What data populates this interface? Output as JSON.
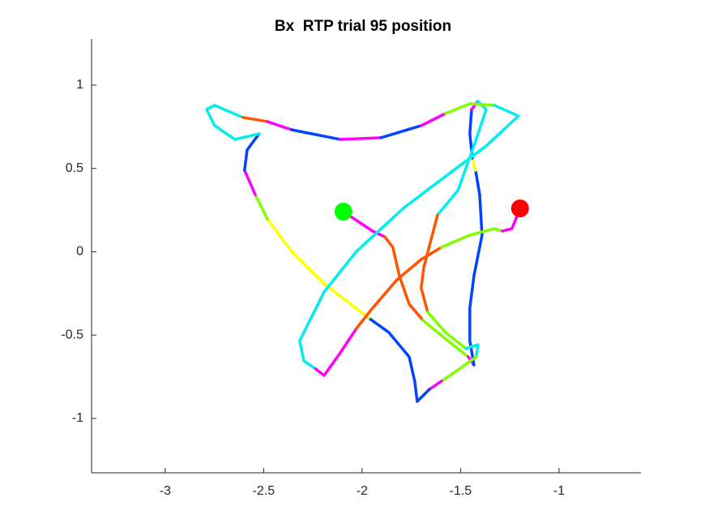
{
  "chart_data": {
    "type": "line",
    "title": "Bx  RTP trial 95 position",
    "xlim": [
      -3.374,
      -0.584
    ],
    "ylim": [
      -1.326,
      1.277
    ],
    "xticks": [
      -3,
      -2.5,
      -2,
      -1.5,
      -1
    ],
    "yticks": [
      -1,
      -0.5,
      0,
      0.5,
      1
    ],
    "start": {
      "x": -2.095,
      "y": 0.241,
      "color": "#00ff00"
    },
    "end": {
      "x": -1.198,
      "y": 0.26,
      "color": "#ff0000"
    },
    "segments": [
      {
        "color": "#ff00ff",
        "x": [
          -2.095,
          -1.947,
          -1.885
        ],
        "y": [
          0.241,
          0.124,
          0.09
        ]
      },
      {
        "color": "#ff5500",
        "x": [
          -1.885,
          -1.844,
          -1.811,
          -1.761,
          -1.691
        ],
        "y": [
          0.09,
          0.027,
          -0.144,
          -0.314,
          -0.411
        ]
      },
      {
        "color": "#80ff00",
        "x": [
          -1.691,
          -1.576,
          -1.461
        ],
        "y": [
          -0.411,
          -0.523,
          -0.63
        ]
      },
      {
        "color": "#ff00ff",
        "x": [
          -1.461,
          -1.432
        ],
        "y": [
          -0.63,
          -0.679
        ]
      },
      {
        "color": "#0044ff",
        "x": [
          -1.432,
          -1.453,
          -1.453,
          -1.432,
          -1.391,
          -1.403,
          -1.424
        ],
        "y": [
          -0.679,
          -0.533,
          -0.338,
          -0.144,
          0.1,
          0.343,
          0.489
        ]
      },
      {
        "color": "#ffff00",
        "x": [
          -1.424,
          -1.44
        ],
        "y": [
          0.489,
          0.562
        ]
      },
      {
        "color": "#0044ff",
        "x": [
          -1.44,
          -1.453,
          -1.444
        ],
        "y": [
          0.562,
          0.708,
          0.854
        ]
      },
      {
        "color": "#ff00ff",
        "x": [
          -1.444,
          -1.412
        ],
        "y": [
          0.854,
          0.903
        ]
      },
      {
        "color": "#00eeee",
        "x": [
          -1.412,
          -1.37,
          -1.432,
          -1.514,
          -1.617
        ],
        "y": [
          0.903,
          0.854,
          0.635,
          0.367,
          0.221
        ]
      },
      {
        "color": "#ff5500",
        "x": [
          -1.617,
          -1.687,
          -1.7,
          -1.667
        ],
        "y": [
          0.221,
          -0.095,
          -0.217,
          -0.363
        ]
      },
      {
        "color": "#80ff00",
        "x": [
          -1.667,
          -1.576,
          -1.473
        ],
        "y": [
          -0.363,
          -0.484,
          -0.581
        ]
      },
      {
        "color": "#00eeee",
        "x": [
          -1.473,
          -1.412,
          -1.42
        ],
        "y": [
          -0.581,
          -0.557,
          -0.63
        ]
      },
      {
        "color": "#80ff00",
        "x": [
          -1.42,
          -1.535,
          -1.597
        ],
        "y": [
          -0.63,
          -0.727,
          -0.776
        ]
      },
      {
        "color": "#ff00ff",
        "x": [
          -1.597,
          -1.658
        ],
        "y": [
          -0.776,
          -0.825
        ]
      },
      {
        "color": "#0044ff",
        "x": [
          -1.658,
          -1.72,
          -1.733,
          -1.761,
          -1.864,
          -1.967
        ],
        "y": [
          -0.825,
          -0.898,
          -0.776,
          -0.63,
          -0.484,
          -0.397
        ]
      },
      {
        "color": "#ffff00",
        "x": [
          -1.967,
          -2.193,
          -2.358,
          -2.481
        ],
        "y": [
          -0.397,
          -0.192,
          0.002,
          0.197
        ]
      },
      {
        "color": "#80ff00",
        "x": [
          -2.481,
          -2.543
        ],
        "y": [
          0.197,
          0.343
        ]
      },
      {
        "color": "#ff00ff",
        "x": [
          -2.543,
          -2.597
        ],
        "y": [
          0.343,
          0.489
        ]
      },
      {
        "color": "#0044ff",
        "x": [
          -2.597,
          -2.584,
          -2.523
        ],
        "y": [
          0.489,
          0.611,
          0.708
        ]
      },
      {
        "color": "#00eeee",
        "x": [
          -2.523,
          -2.646,
          -2.749,
          -2.79,
          -2.749,
          -2.605
        ],
        "y": [
          0.708,
          0.674,
          0.757,
          0.854,
          0.879,
          0.806
        ]
      },
      {
        "color": "#ff5500",
        "x": [
          -2.605,
          -2.481
        ],
        "y": [
          0.806,
          0.781
        ]
      },
      {
        "color": "#ff00ff",
        "x": [
          -2.481,
          -2.358
        ],
        "y": [
          0.781,
          0.732
        ]
      },
      {
        "color": "#0044ff",
        "x": [
          -2.358,
          -2.111
        ],
        "y": [
          0.732,
          0.674
        ]
      },
      {
        "color": "#ff00ff",
        "x": [
          -2.111,
          -1.905
        ],
        "y": [
          0.674,
          0.684
        ]
      },
      {
        "color": "#0044ff",
        "x": [
          -1.905,
          -1.7
        ],
        "y": [
          0.684,
          0.757
        ]
      },
      {
        "color": "#ff00ff",
        "x": [
          -1.7,
          -1.576
        ],
        "y": [
          0.757,
          0.83
        ]
      },
      {
        "color": "#80ff00",
        "x": [
          -1.576,
          -1.453,
          -1.329
        ],
        "y": [
          0.83,
          0.888,
          0.879
        ]
      },
      {
        "color": "#00eeee",
        "x": [
          -1.329,
          -1.206,
          -1.37,
          -1.535,
          -1.782,
          -2.029,
          -2.193,
          -2.317,
          -2.296,
          -2.235
        ],
        "y": [
          0.879,
          0.815,
          0.635,
          0.489,
          0.27,
          0.002,
          -0.241,
          -0.533,
          -0.655,
          -0.703
        ]
      },
      {
        "color": "#ff00ff",
        "x": [
          -2.235,
          -2.193,
          -2.111,
          -2.029
        ],
        "y": [
          -0.703,
          -0.742,
          -0.606,
          -0.46
        ]
      },
      {
        "color": "#ff5500",
        "x": [
          -2.029,
          -1.947,
          -1.823,
          -1.7,
          -1.597
        ],
        "y": [
          -0.46,
          -0.338,
          -0.168,
          -0.046,
          0.027
        ]
      },
      {
        "color": "#80ff00",
        "x": [
          -1.597,
          -1.453,
          -1.329,
          -1.288
        ],
        "y": [
          0.027,
          0.1,
          0.139,
          0.124
        ]
      },
      {
        "color": "#ff00ff",
        "x": [
          -1.288,
          -1.239,
          -1.198
        ],
        "y": [
          0.124,
          0.139,
          0.26
        ]
      }
    ]
  }
}
